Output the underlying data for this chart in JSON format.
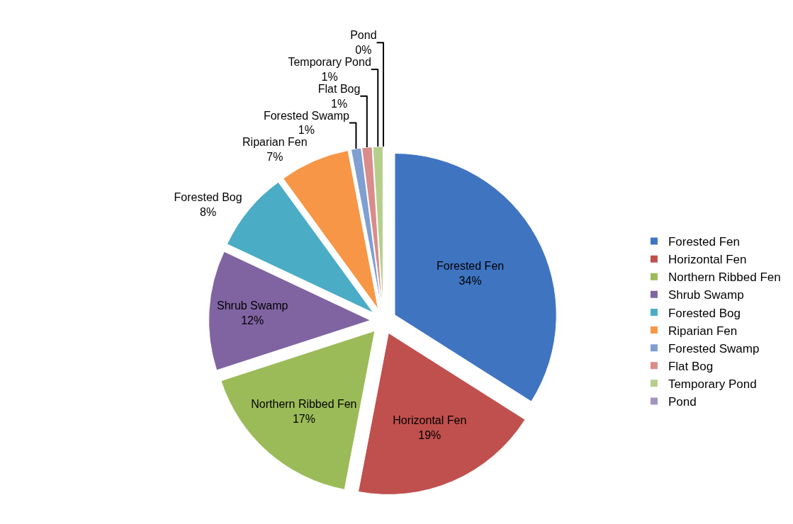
{
  "chart_data": {
    "type": "pie",
    "categories": [
      "Forested Fen",
      "Horizontal Fen",
      "Northern Ribbed Fen",
      "Shrub Swamp",
      "Forested Bog",
      "Riparian Fen",
      "Forested Swamp",
      "Flat Bog",
      "Temporary Pond",
      "Pond"
    ],
    "values": [
      34,
      19,
      17,
      12,
      8,
      7,
      1,
      1,
      1,
      0
    ],
    "value_labels": [
      "34%",
      "19%",
      "17%",
      "12%",
      "8%",
      "7%",
      "1%",
      "1%",
      "1%",
      "0%"
    ],
    "colors": [
      "#3f74c1",
      "#c0504d",
      "#9bbb59",
      "#8064a2",
      "#4bacc6",
      "#f79646",
      "#7f9fd0",
      "#d98c8a",
      "#b5cf8a",
      "#a493c0"
    ],
    "legend": "right"
  }
}
